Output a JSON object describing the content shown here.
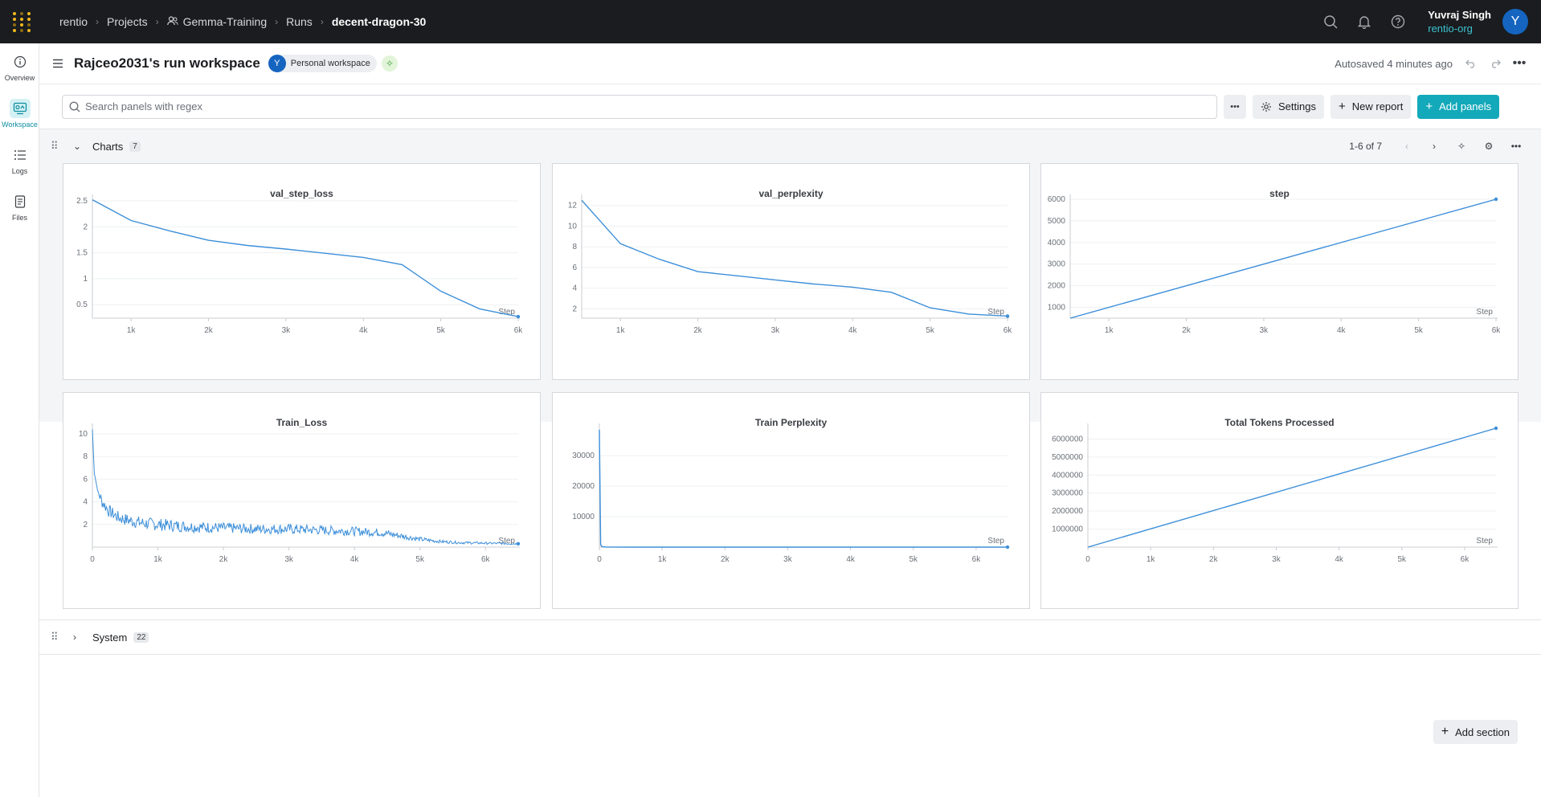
{
  "breadcrumb": {
    "items": [
      "rentio",
      "Projects",
      "Gemma-Training",
      "Runs"
    ],
    "current": "decent-dragon-30"
  },
  "user": {
    "name": "Yuvraj Singh",
    "org": "rentio-org",
    "initial": "Y"
  },
  "leftnav": [
    {
      "label": "Overview",
      "icon": "info-icon"
    },
    {
      "label": "Workspace",
      "icon": "workspace-icon",
      "active": true
    },
    {
      "label": "Logs",
      "icon": "list-icon"
    },
    {
      "label": "Files",
      "icon": "file-icon"
    }
  ],
  "header": {
    "title": "Rajceo2031's run workspace",
    "workspace_badge": "Personal workspace",
    "workspace_initial": "Y",
    "autosave": "Autosaved 4 minutes ago"
  },
  "toolbar": {
    "search_placeholder": "Search panels with regex",
    "settings": "Settings",
    "new_report": "New report",
    "add_panels": "Add panels"
  },
  "charts_section": {
    "title": "Charts",
    "count": "7",
    "pager": "1-6 of 7"
  },
  "system_section": {
    "title": "System",
    "count": "22"
  },
  "add_section": "Add section",
  "colors": {
    "accent": "#13a9ba",
    "line": "#3d8fd9",
    "topbar": "#1a1c1f"
  },
  "chart_data": [
    {
      "type": "line",
      "title": "val_step_loss",
      "xlabel": "Step",
      "x_ticks": [
        "1k",
        "2k",
        "3k",
        "4k",
        "5k",
        "6k"
      ],
      "y_ticks": [
        "0.5",
        "1",
        "1.5",
        "2",
        "2.5"
      ],
      "xlim": [
        500,
        6000
      ],
      "ylim": [
        0.24,
        2.53
      ],
      "x": [
        500,
        1000,
        1500,
        2000,
        2500,
        3000,
        3500,
        4000,
        4500,
        5000,
        5500,
        6000
      ],
      "y": [
        2.52,
        2.12,
        1.92,
        1.74,
        1.64,
        1.57,
        1.49,
        1.41,
        1.27,
        0.76,
        0.42,
        0.27
      ]
    },
    {
      "type": "line",
      "title": "val_perplexity",
      "xlabel": "Step",
      "x_ticks": [
        "1k",
        "2k",
        "3k",
        "4k",
        "5k",
        "6k"
      ],
      "y_ticks": [
        "2",
        "4",
        "6",
        "8",
        "10",
        "12"
      ],
      "xlim": [
        500,
        6000
      ],
      "ylim": [
        1.1,
        12.6
      ],
      "x": [
        500,
        1000,
        1500,
        2000,
        2500,
        3000,
        3500,
        4000,
        4500,
        5000,
        5500,
        6000
      ],
      "y": [
        12.5,
        8.3,
        6.8,
        5.6,
        5.2,
        4.8,
        4.4,
        4.1,
        3.6,
        2.1,
        1.5,
        1.3
      ]
    },
    {
      "type": "line",
      "title": "step",
      "xlabel": "Step",
      "x_ticks": [
        "1k",
        "2k",
        "3k",
        "4k",
        "5k",
        "6k"
      ],
      "y_ticks": [
        "1000",
        "2000",
        "3000",
        "4000",
        "5000",
        "6000"
      ],
      "xlim": [
        500,
        6000
      ],
      "ylim": [
        500,
        6000
      ],
      "x": [
        500,
        6000
      ],
      "y": [
        500,
        6000
      ]
    },
    {
      "type": "line",
      "title": "Train_Loss",
      "xlabel": "Step",
      "x_ticks": [
        "0",
        "1k",
        "2k",
        "3k",
        "4k",
        "5k",
        "6k"
      ],
      "y_ticks": [
        "2",
        "4",
        "6",
        "8",
        "10"
      ],
      "xlim": [
        0,
        6500
      ],
      "ylim": [
        0,
        10.5
      ],
      "x": [
        0,
        30,
        80,
        150,
        250,
        400,
        600,
        800,
        1000,
        1500,
        2000,
        2500,
        3000,
        3500,
        4000,
        4400,
        4700,
        5000,
        5300,
        5600,
        6000,
        6500
      ],
      "y": [
        10.4,
        6.5,
        5.0,
        4.0,
        3.2,
        2.6,
        2.3,
        2.1,
        2.0,
        1.8,
        1.7,
        1.6,
        1.6,
        1.5,
        1.4,
        1.3,
        1.0,
        0.7,
        0.5,
        0.4,
        0.35,
        0.3
      ]
    },
    {
      "type": "line",
      "title": "Train Perplexity",
      "xlabel": "Step",
      "x_ticks": [
        "0",
        "1k",
        "2k",
        "3k",
        "4k",
        "5k",
        "6k"
      ],
      "y_ticks": [
        "10000",
        "20000",
        "30000"
      ],
      "xlim": [
        0,
        6500
      ],
      "ylim": [
        0,
        39000
      ],
      "x": [
        0,
        20,
        40,
        100,
        500,
        1000,
        2000,
        3000,
        4000,
        5000,
        6000,
        6500
      ],
      "y": [
        38500,
        800,
        200,
        30,
        10,
        8,
        6,
        5,
        4,
        2,
        1.5,
        1.3
      ]
    },
    {
      "type": "line",
      "title": "Total Tokens Processed",
      "xlabel": "Step",
      "x_ticks": [
        "0",
        "1k",
        "2k",
        "3k",
        "4k",
        "5k",
        "6k"
      ],
      "y_ticks": [
        "1000000",
        "2000000",
        "3000000",
        "4000000",
        "5000000",
        "6000000"
      ],
      "xlim": [
        0,
        6500
      ],
      "ylim": [
        0,
        6600000
      ],
      "x": [
        0,
        6500
      ],
      "y": [
        0,
        6600000
      ]
    }
  ]
}
